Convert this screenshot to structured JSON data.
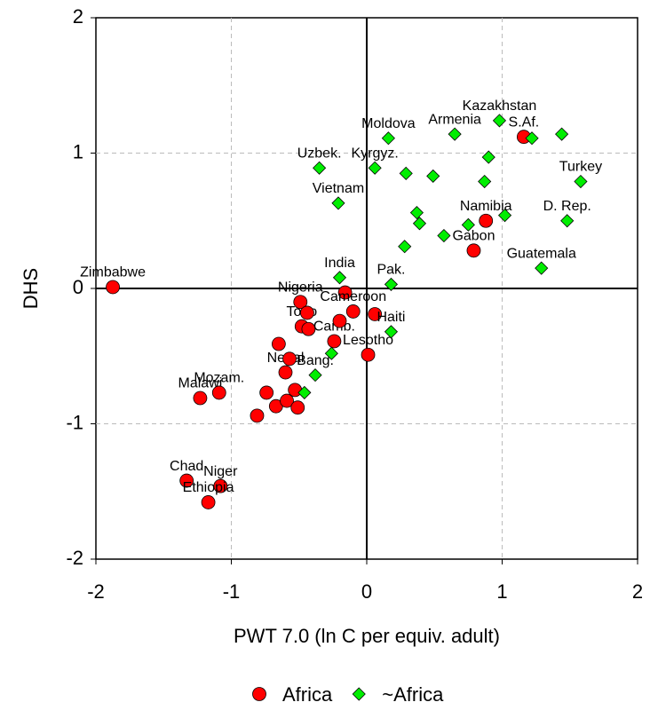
{
  "chart_data": {
    "type": "scatter",
    "x_label": "PWT 7.0 (ln C per equiv. adult)",
    "y_label": "DHS",
    "xlim": [
      -2,
      2
    ],
    "ylim": [
      -2,
      2
    ],
    "xticks": [
      -2,
      -1,
      0,
      1,
      2
    ],
    "yticks": [
      -2,
      -1,
      0,
      1,
      2
    ],
    "grid": true,
    "series": [
      {
        "name": "Africa",
        "color": "#ff0000",
        "marker": "circle",
        "x": [
          -1.875,
          -1.33,
          -1.08,
          -1.17,
          -1.23,
          -1.09,
          -0.81,
          -0.74,
          -0.67,
          -0.65,
          -0.59,
          -0.6,
          -0.57,
          -0.53,
          -0.51,
          -0.49,
          -0.48,
          -0.44,
          -0.43,
          -0.24,
          -0.2,
          -0.16,
          -0.1,
          0.06,
          0.01,
          1.16,
          0.88,
          0.79
        ],
        "values": [
          0.01,
          -1.42,
          -1.46,
          -1.58,
          -0.81,
          -0.77,
          -0.94,
          -0.77,
          -0.87,
          -0.41,
          -0.83,
          -0.62,
          -0.52,
          -0.75,
          -0.88,
          -0.1,
          -0.28,
          -0.18,
          -0.3,
          -0.39,
          -0.24,
          -0.03,
          -0.17,
          -0.19,
          -0.49,
          1.12,
          0.5,
          0.28
        ],
        "labels": [
          "Zimbabwe",
          "Chad",
          "Niger",
          "Ethiopia",
          "Malawi",
          "Mozam.",
          null,
          null,
          null,
          null,
          null,
          "Nepal",
          null,
          null,
          null,
          "Nigeria",
          "Togo",
          null,
          null,
          "Camb.",
          null,
          null,
          "Cameroon",
          null,
          "Lesotho",
          "S.Af.",
          "Namibia",
          "Gabon"
        ]
      },
      {
        "name": "~Africa",
        "color": "#00ee00",
        "marker": "diamond",
        "x": [
          -0.35,
          0.06,
          0.16,
          -0.21,
          0.65,
          0.98,
          1.22,
          1.58,
          1.44,
          0.9,
          0.87,
          0.49,
          0.29,
          1.48,
          1.02,
          0.75,
          0.37,
          0.39,
          0.57,
          0.28,
          1.29,
          -0.2,
          0.18,
          0.18,
          -0.38,
          -0.46,
          -0.26
        ],
        "values": [
          0.89,
          0.89,
          1.11,
          0.63,
          1.14,
          1.24,
          1.11,
          0.79,
          1.14,
          0.97,
          0.79,
          0.83,
          0.85,
          0.5,
          0.54,
          0.47,
          0.56,
          0.48,
          0.39,
          0.31,
          0.15,
          0.08,
          0.03,
          -0.32,
          -0.64,
          -0.77,
          -0.48
        ],
        "labels": [
          "Uzbek.",
          "Kyrgyz.",
          "Moldova",
          "Vietnam",
          "Armenia",
          "Kazakhstan",
          null,
          "Turkey",
          null,
          null,
          null,
          null,
          null,
          "D. Rep.",
          null,
          null,
          null,
          null,
          null,
          null,
          "Guatemala",
          "India",
          "Pak.",
          "Haiti",
          "Bang.",
          null,
          null
        ]
      }
    ]
  }
}
